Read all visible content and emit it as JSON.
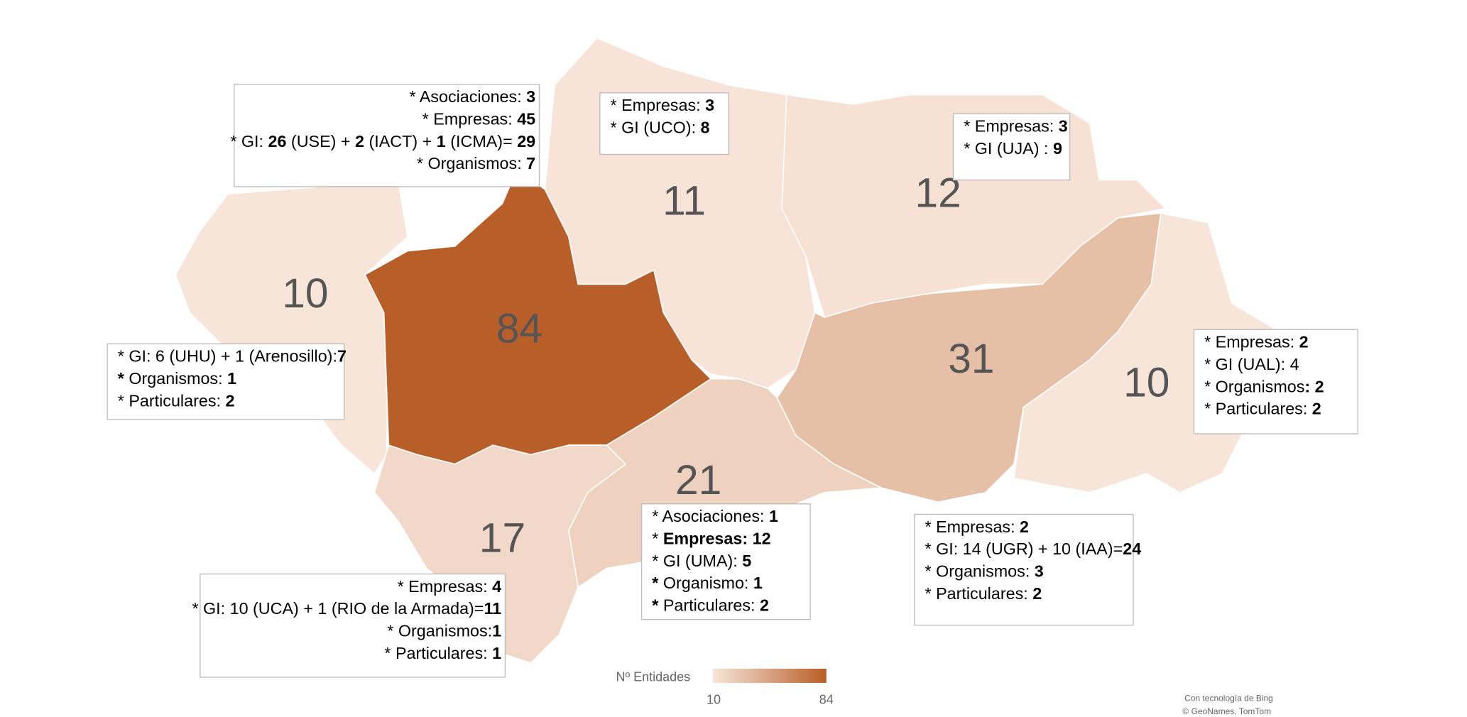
{
  "map": {
    "values": [
      10,
      84,
      11,
      12,
      31,
      10,
      21,
      17
    ],
    "legend": {
      "title": "Nº Entidades",
      "min": 10,
      "max": 84,
      "colors": [
        "#f8e5d9",
        "#b85e28"
      ]
    },
    "attribution": [
      "Con tecnología de Bing",
      "© GeoNames, TomTom"
    ]
  },
  "boxes": [
    {
      "align": "right",
      "lines": [
        [
          "* Asociaciones: ",
          {
            "text": "3",
            "bold": true
          }
        ],
        [
          "* Empresas: ",
          {
            "text": "45",
            "bold": true
          }
        ],
        [
          "* GI: ",
          {
            "text": "26",
            "bold": true
          },
          " (USE) + ",
          {
            "text": "2",
            "bold": true
          },
          " (IACT) + ",
          {
            "text": "1",
            "bold": true
          },
          " (ICMA)= ",
          {
            "text": "29",
            "bold": true
          }
        ],
        [
          "* Organismos: ",
          {
            "text": "7",
            "bold": true
          }
        ]
      ]
    },
    {
      "align": "left",
      "lines": [
        [
          "* Empresas: ",
          {
            "text": "3",
            "bold": true
          }
        ],
        [
          "* GI (UCO): ",
          {
            "text": "8",
            "bold": true
          }
        ]
      ]
    },
    {
      "align": "left",
      "lines": [
        [
          "* Empresas: ",
          {
            "text": "3",
            "bold": true
          }
        ],
        [
          "* GI (UJA) : ",
          {
            "text": "9",
            "bold": true
          }
        ]
      ]
    },
    {
      "align": "left",
      "lines": [
        [
          "* GI: 6 (UHU) + 1 (Arenosillo):",
          {
            "text": "7",
            "bold": true
          }
        ],
        [
          {
            "text": "*",
            "bold": true
          },
          " Organismos: ",
          {
            "text": "1",
            "bold": true
          }
        ],
        [
          "* Particulares: ",
          {
            "text": "2",
            "bold": true
          }
        ]
      ]
    },
    {
      "align": "left",
      "lines": [
        [
          "* Empresas: ",
          {
            "text": "2",
            "bold": true
          }
        ],
        [
          "* GI (UAL): 4"
        ],
        [
          "* Organismos",
          {
            "text": ": 2",
            "bold": true
          }
        ],
        [
          "* Particulares: ",
          {
            "text": "2",
            "bold": true
          }
        ]
      ]
    },
    {
      "align": "left",
      "lines": [
        [
          "* Asociaciones: ",
          {
            "text": "1",
            "bold": true
          }
        ],
        [
          "* ",
          {
            "text": "Empresas: 12",
            "bold": true
          }
        ],
        [
          "* GI (UMA): ",
          {
            "text": "5",
            "bold": true
          }
        ],
        [
          {
            "text": "*",
            "bold": true
          },
          " Organismo: ",
          {
            "text": "1",
            "bold": true
          }
        ],
        [
          {
            "text": "*",
            "bold": true
          },
          " Particulares: ",
          {
            "text": "2",
            "bold": true
          }
        ]
      ]
    },
    {
      "align": "left",
      "lines": [
        [
          "* Empresas: ",
          {
            "text": "2",
            "bold": true
          }
        ],
        [
          "* GI: 14 (UGR) + 10 (IAA)=",
          {
            "text": "24",
            "bold": true
          }
        ],
        [
          "* Organismos: ",
          {
            "text": "3",
            "bold": true
          }
        ],
        [
          "* Particulares: ",
          {
            "text": "2",
            "bold": true
          }
        ]
      ]
    },
    {
      "align": "right",
      "lines": [
        [
          "* Empresas: ",
          {
            "text": "4",
            "bold": true
          }
        ],
        [
          "* GI: 10 (UCA) + 1 (RIO de la Armada)=",
          {
            "text": "11",
            "bold": true
          }
        ],
        [
          "* Organismos:",
          {
            "text": "1",
            "bold": true
          }
        ],
        [
          "* Particulares: ",
          {
            "text": "1",
            "bold": true
          }
        ]
      ]
    }
  ]
}
